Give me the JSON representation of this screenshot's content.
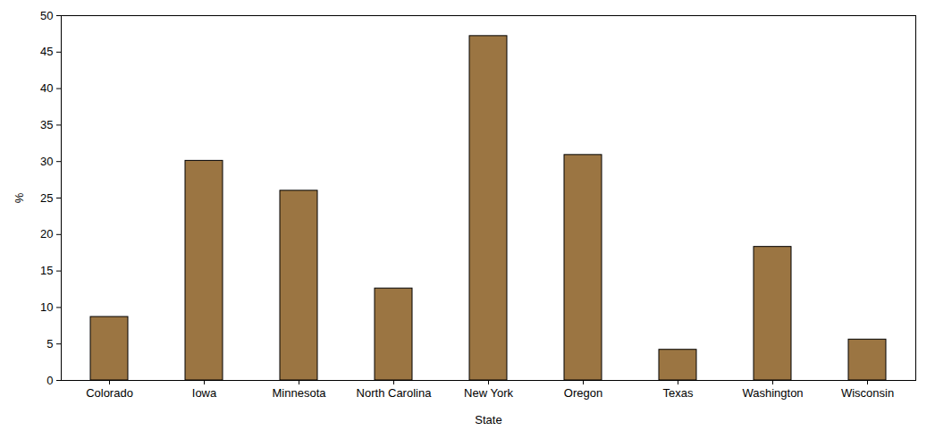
{
  "chart_data": {
    "type": "bar",
    "x_label": "State",
    "y_label": "%",
    "categories": [
      "Colorado",
      "Iowa",
      "Minnesota",
      "North Carolina",
      "New York",
      "Oregon",
      "Texas",
      "Washington",
      "Wisconsin"
    ],
    "values": [
      8.7,
      30.1,
      26.0,
      12.6,
      47.2,
      30.9,
      4.2,
      18.3,
      5.6
    ],
    "color": "#9b7542",
    "ylim": [
      0,
      50
    ],
    "yticks": [
      0,
      5,
      10,
      15,
      20,
      25,
      30,
      35,
      40,
      45,
      50
    ],
    "grid": false
  }
}
